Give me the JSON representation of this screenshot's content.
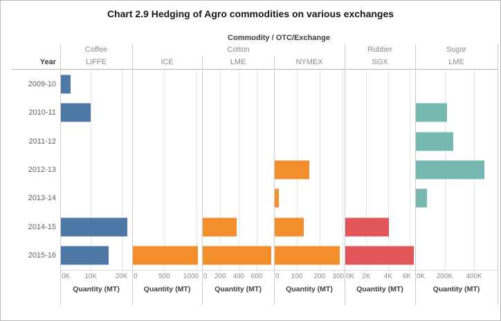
{
  "chart_data": {
    "type": "bar",
    "orientation": "horizontal",
    "title": "Chart 2.9 Hedging of Agro commodities on various exchanges",
    "facet_header": "Commodity / OTC/Exchange",
    "row_field": "Year",
    "categories": [
      "2009-10",
      "2010-11",
      "2011-12",
      "2012-13",
      "2013-14",
      "2014-15",
      "2015-16"
    ],
    "axis_label": "Quantity (MT)",
    "grid": "vertical gridlines at axis ticks, independent x-axis per panel",
    "legend_position": "none",
    "commodity_groups": [
      {
        "name": "Coffee",
        "panel_count": 1
      },
      {
        "name": "Cotton",
        "panel_count": 3
      },
      {
        "name": "Rubber",
        "panel_count": 1
      },
      {
        "name": "Sugar",
        "panel_count": 1
      }
    ],
    "panels": [
      {
        "commodity": "Coffee",
        "exchange": "LIFFE",
        "color": "#4e79a7",
        "axis_max": 23500,
        "ticks": [
          {
            "value": 0,
            "label": "0K"
          },
          {
            "value": 10000,
            "label": "10K"
          },
          {
            "value": 20000,
            "label": "20K"
          }
        ],
        "values": [
          3500,
          10000,
          0,
          0,
          0,
          22000,
          15800
        ]
      },
      {
        "commodity": "Cotton",
        "exchange": "ICE",
        "color": "#f28e2b",
        "axis_max": 1090,
        "ticks": [
          {
            "value": 0,
            "label": "0"
          },
          {
            "value": 500,
            "label": "500"
          },
          {
            "value": 1000,
            "label": "1000"
          }
        ],
        "values": [
          0,
          0,
          0,
          0,
          0,
          0,
          1030
        ]
      },
      {
        "commodity": "Cotton",
        "exchange": "LME",
        "color": "#f28e2b",
        "axis_max": 790,
        "ticks": [
          {
            "value": 0,
            "label": "0"
          },
          {
            "value": 200,
            "label": "200"
          },
          {
            "value": 400,
            "label": "400"
          },
          {
            "value": 600,
            "label": "600"
          }
        ],
        "values": [
          0,
          0,
          0,
          0,
          0,
          380,
          760
        ]
      },
      {
        "commodity": "Cotton",
        "exchange": "NYMEX",
        "color": "#f28e2b",
        "axis_max": 310,
        "ticks": [
          {
            "value": 0,
            "label": "0"
          },
          {
            "value": 100,
            "label": "100"
          },
          {
            "value": 200,
            "label": "200"
          },
          {
            "value": 300,
            "label": "300"
          }
        ],
        "values": [
          0,
          0,
          0,
          155,
          20,
          130,
          290
        ]
      },
      {
        "commodity": "Rubber",
        "exchange": "SGX",
        "color": "#e15759",
        "axis_max": 6500,
        "ticks": [
          {
            "value": 0,
            "label": "0K"
          },
          {
            "value": 2000,
            "label": "2K"
          },
          {
            "value": 4000,
            "label": "4K"
          },
          {
            "value": 6000,
            "label": "6K"
          }
        ],
        "values": [
          0,
          0,
          0,
          0,
          0,
          4100,
          6400
        ]
      },
      {
        "commodity": "Sugar",
        "exchange": "LME",
        "color": "#76b7b2",
        "axis_max": 560000,
        "ticks": [
          {
            "value": 0,
            "label": "0K"
          },
          {
            "value": 200000,
            "label": "200K"
          },
          {
            "value": 400000,
            "label": "400K"
          }
        ],
        "values": [
          0,
          215000,
          260000,
          470000,
          80000,
          0,
          0
        ]
      }
    ]
  },
  "colors": {
    "coffee": "#4e79a7",
    "cotton": "#f28e2b",
    "rubber": "#e15759",
    "sugar": "#76b7b2",
    "header_text": "#8a8a8a",
    "dark_text": "#3d3d3d",
    "divider": "#c9c9c9",
    "gridline": "#e4e4e4"
  }
}
